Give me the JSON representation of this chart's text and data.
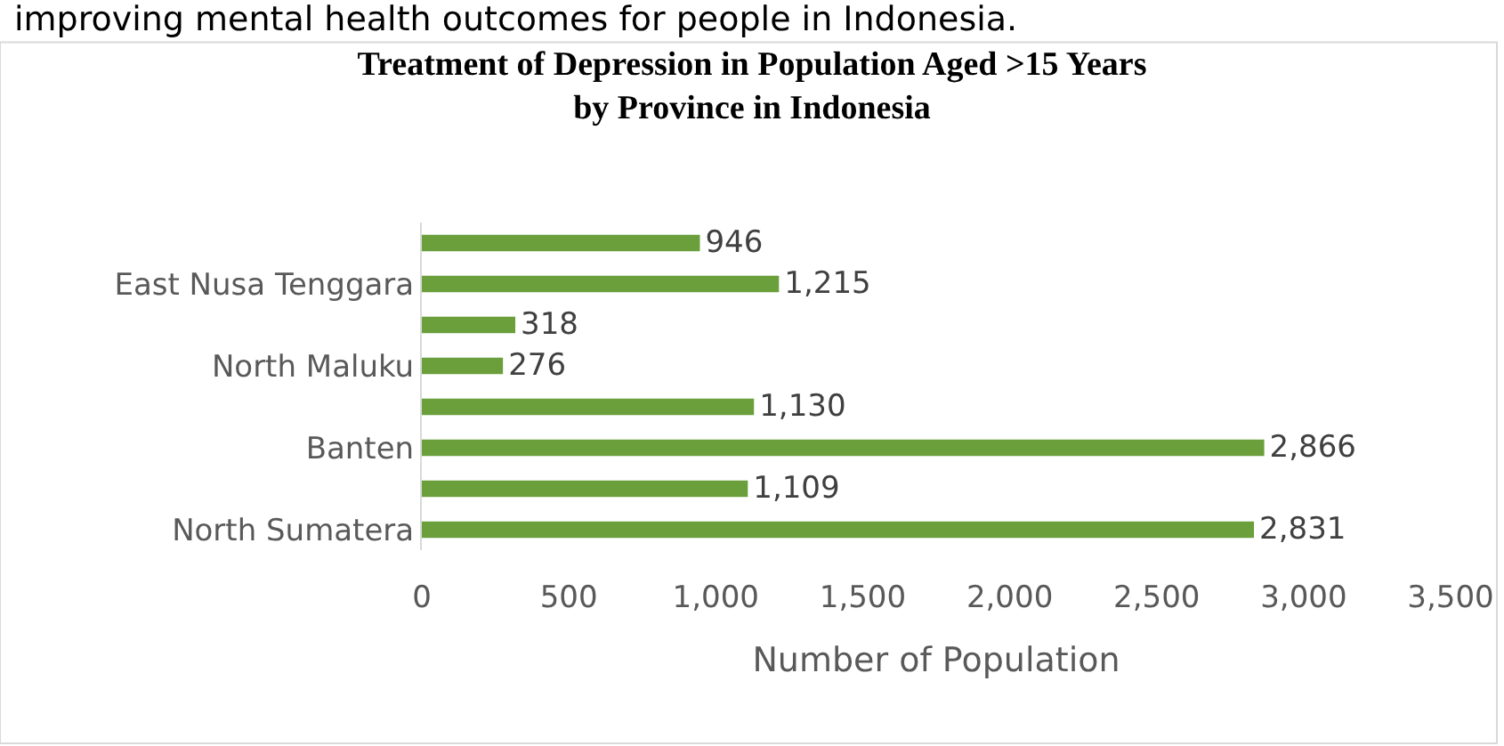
{
  "chart_data": {
    "type": "bar",
    "orientation": "horizontal",
    "title": "Treatment of Depression in Population Aged >15 Years\nby Province in Indonesia",
    "xlabel": "Number of Population",
    "annotations": [
      "improving mental health outcomes for people in Indonesia."
    ],
    "categories": [
      null,
      "East Nusa Tenggara",
      null,
      "North Maluku",
      null,
      "Banten",
      null,
      "North Sumatera"
    ],
    "values": [
      946,
      1215,
      318,
      276,
      1130,
      2866,
      1109,
      2831
    ],
    "color": "#6a9f3c",
    "value_labels": [
      "946",
      "1,215",
      "318",
      "276",
      "1,130",
      "2,866",
      "1,109",
      "2,831"
    ],
    "grid": false,
    "xlim": [
      0,
      3500
    ],
    "xticks": [
      0,
      500,
      {
        "value": 1000,
        "label": "1,000"
      },
      {
        "value": 1500,
        "label": "1,500"
      },
      {
        "value": 2000,
        "label": "2,000"
      },
      {
        "value": 2500,
        "label": "2,500"
      },
      {
        "value": 3000,
        "label": "3,000"
      },
      {
        "value": 3500,
        "label": "3,500"
      }
    ]
  }
}
